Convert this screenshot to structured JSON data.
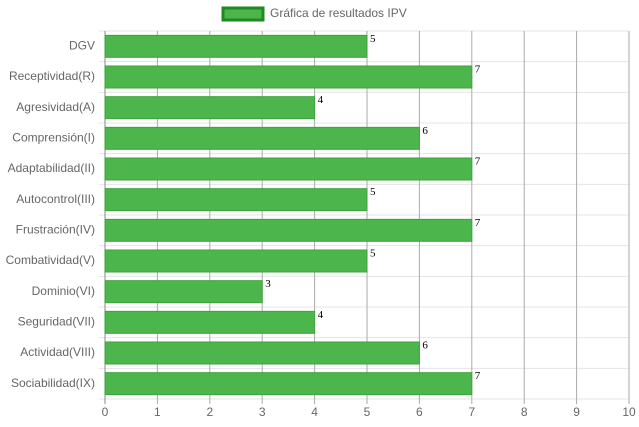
{
  "chart_data": {
    "type": "bar",
    "orientation": "horizontal",
    "categories": [
      "DGV",
      "Receptividad(R)",
      "Agresividad(A)",
      "Comprensión(I)",
      "Adaptabilidad(II)",
      "Autocontrol(III)",
      "Frustración(IV)",
      "Combatividad(V)",
      "Dominio(VI)",
      "Seguridad(VII)",
      "Actividad(VIII)",
      "Sociabilidad(IX)"
    ],
    "series": [
      {
        "name": "Gráfica de resultados IPV",
        "color": "#4cb64c",
        "border_color": "#1f8a1f",
        "values": [
          5,
          7,
          4,
          6,
          7,
          5,
          7,
          5,
          3,
          4,
          6,
          7
        ]
      }
    ],
    "xlim": [
      0,
      10
    ],
    "xticks": [
      0,
      1,
      2,
      3,
      4,
      5,
      6,
      7,
      8,
      9,
      10
    ],
    "grid": true,
    "legend": "top"
  }
}
